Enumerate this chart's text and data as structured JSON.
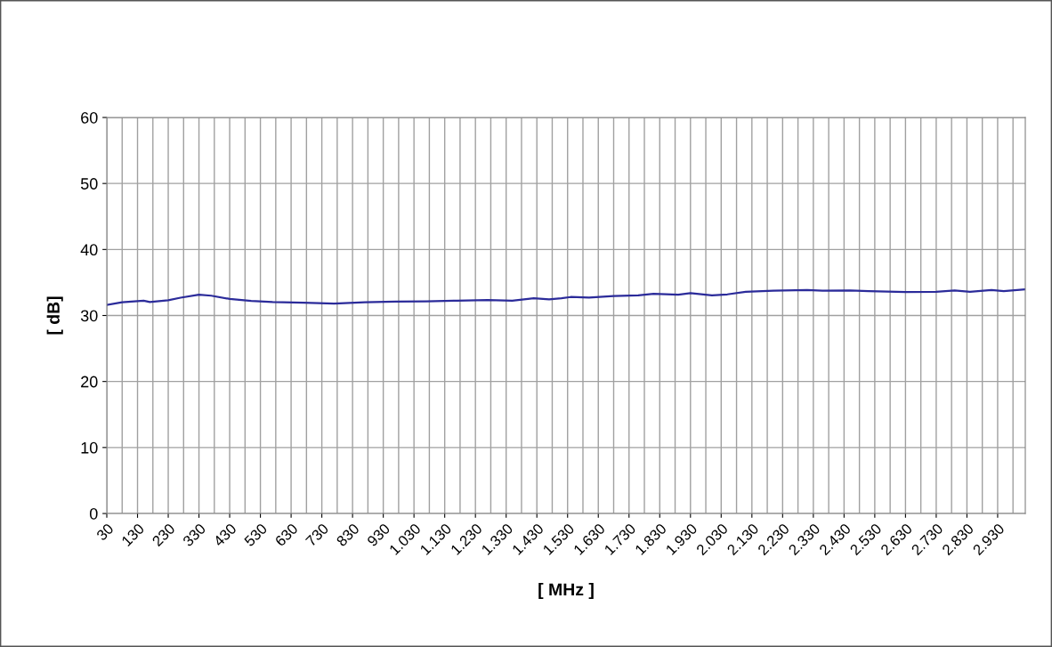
{
  "chart_data": {
    "type": "line",
    "xlabel": "[ MHz ]",
    "ylabel": "[ dB]",
    "x": [
      30,
      80,
      150,
      170,
      230,
      270,
      330,
      370,
      430,
      500,
      570,
      670,
      770,
      870,
      970,
      1070,
      1170,
      1270,
      1350,
      1420,
      1470,
      1510,
      1540,
      1600,
      1680,
      1760,
      1810,
      1890,
      1930,
      2000,
      2050,
      2110,
      2200,
      2310,
      2360,
      2450,
      2510,
      2630,
      2730,
      2790,
      2840,
      2910,
      2950,
      3020
    ],
    "series": [
      {
        "color": "#2b2b9a",
        "values": [
          31.6,
          32.0,
          32.25,
          32.05,
          32.3,
          32.7,
          33.15,
          33.0,
          32.5,
          32.2,
          32.05,
          31.95,
          31.8,
          32.0,
          32.1,
          32.15,
          32.25,
          32.35,
          32.25,
          32.6,
          32.45,
          32.6,
          32.8,
          32.7,
          32.95,
          33.05,
          33.3,
          33.15,
          33.4,
          33.05,
          33.2,
          33.6,
          33.75,
          33.85,
          33.75,
          33.8,
          33.7,
          33.55,
          33.6,
          33.8,
          33.6,
          33.85,
          33.7,
          33.95
        ]
      }
    ],
    "xlim": [
      30,
      3020
    ],
    "xticks": [
      30,
      {
        "value": 80,
        "label": null
      },
      130,
      {
        "value": 180,
        "label": null
      },
      230,
      {
        "value": 280,
        "label": null
      },
      330,
      {
        "value": 380,
        "label": null
      },
      430,
      {
        "value": 480,
        "label": null
      },
      530,
      {
        "value": 580,
        "label": null
      },
      630,
      {
        "value": 680,
        "label": null
      },
      730,
      {
        "value": 780,
        "label": null
      },
      830,
      {
        "value": 880,
        "label": null
      },
      930,
      {
        "value": 980,
        "label": null
      },
      {
        "value": 1030,
        "label": "1.030"
      },
      {
        "value": 1080,
        "label": null
      },
      {
        "value": 1130,
        "label": "1.130"
      },
      {
        "value": 1180,
        "label": null
      },
      {
        "value": 1230,
        "label": "1.230"
      },
      {
        "value": 1280,
        "label": null
      },
      {
        "value": 1330,
        "label": "1.330"
      },
      {
        "value": 1380,
        "label": null
      },
      {
        "value": 1430,
        "label": "1.430"
      },
      {
        "value": 1480,
        "label": null
      },
      {
        "value": 1530,
        "label": "1.530"
      },
      {
        "value": 1580,
        "label": null
      },
      {
        "value": 1630,
        "label": "1.630"
      },
      {
        "value": 1680,
        "label": null
      },
      {
        "value": 1730,
        "label": "1.730"
      },
      {
        "value": 1780,
        "label": null
      },
      {
        "value": 1830,
        "label": "1.830"
      },
      {
        "value": 1880,
        "label": null
      },
      {
        "value": 1930,
        "label": "1.930"
      },
      {
        "value": 1980,
        "label": null
      },
      {
        "value": 2030,
        "label": "2.030"
      },
      {
        "value": 2080,
        "label": null
      },
      {
        "value": 2130,
        "label": "2.130"
      },
      {
        "value": 2180,
        "label": null
      },
      {
        "value": 2230,
        "label": "2.230"
      },
      {
        "value": 2280,
        "label": null
      },
      {
        "value": 2330,
        "label": "2.330"
      },
      {
        "value": 2380,
        "label": null
      },
      {
        "value": 2430,
        "label": "2.430"
      },
      {
        "value": 2480,
        "label": null
      },
      {
        "value": 2530,
        "label": "2.530"
      },
      {
        "value": 2580,
        "label": null
      },
      {
        "value": 2630,
        "label": "2.630"
      },
      {
        "value": 2680,
        "label": null
      },
      {
        "value": 2730,
        "label": "2.730"
      },
      {
        "value": 2780,
        "label": null
      },
      {
        "value": 2830,
        "label": "2.830"
      },
      {
        "value": 2880,
        "label": null
      },
      {
        "value": 2930,
        "label": "2.930"
      },
      {
        "value": 2980,
        "label": null
      }
    ],
    "ylim": [
      0,
      60
    ],
    "yticks": [
      0,
      10,
      20,
      30,
      40,
      50,
      60
    ],
    "grid": true,
    "legend": false,
    "marker": "none",
    "line_style": "solid"
  }
}
